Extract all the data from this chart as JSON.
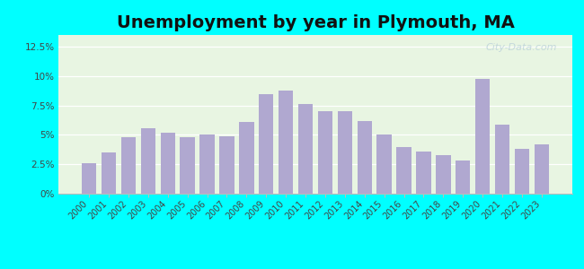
{
  "title": "Unemployment by year in Plymouth, MA",
  "years": [
    2000,
    2001,
    2002,
    2003,
    2004,
    2005,
    2006,
    2007,
    2008,
    2009,
    2010,
    2011,
    2012,
    2013,
    2014,
    2015,
    2016,
    2017,
    2018,
    2019,
    2020,
    2021,
    2022,
    2023
  ],
  "values": [
    2.6,
    3.5,
    4.8,
    5.6,
    5.2,
    4.8,
    5.0,
    4.9,
    6.1,
    8.5,
    8.8,
    7.6,
    7.0,
    7.0,
    6.2,
    5.0,
    4.0,
    3.6,
    3.3,
    2.8,
    9.8,
    5.9,
    3.8,
    4.2
  ],
  "bar_color": "#b0a8d0",
  "background_color": "#e8f5e2",
  "outer_background": "#00ffff",
  "ylim": [
    0,
    13.5
  ],
  "yticks": [
    0,
    2.5,
    5.0,
    7.5,
    10.0,
    12.5
  ],
  "ytick_labels": [
    "0%",
    "2.5%",
    "5%",
    "7.5%",
    "10%",
    "12.5%"
  ],
  "title_fontsize": 14,
  "title_fontweight": "bold",
  "watermark_text": "City-Data.com",
  "watermark_color": "#b0c8d8",
  "watermark_alpha": 0.65
}
